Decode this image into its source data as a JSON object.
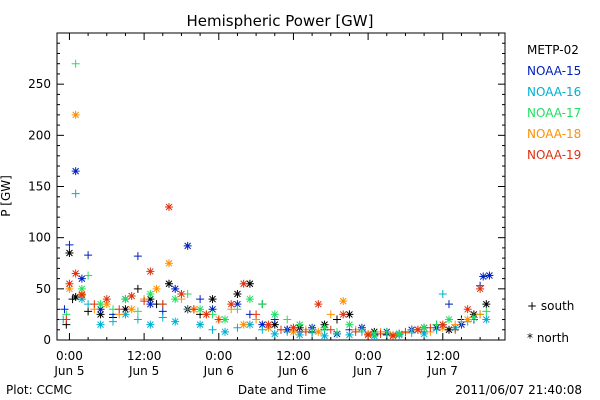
{
  "chart_data": {
    "type": "scatter",
    "title": "Hemispheric Power [GW]",
    "xlabel": "Date and Time",
    "ylabel": "P [GW]",
    "ylim": [
      0,
      300
    ],
    "yticks": [
      0,
      50,
      100,
      150,
      200,
      250
    ],
    "xlim": [
      -2,
      70
    ],
    "x_unit": "hours since 2011-06-05 00:00 UT",
    "xticks": [
      {
        "x": 0,
        "time": "0:00",
        "date": "Jun 5"
      },
      {
        "x": 12,
        "time": "12:00",
        "date": "Jun 5"
      },
      {
        "x": 24,
        "time": "0:00",
        "date": "Jun 6"
      },
      {
        "x": 36,
        "time": "12:00",
        "date": "Jun 6"
      },
      {
        "x": 48,
        "time": "0:00",
        "date": "Jun 7"
      },
      {
        "x": 60,
        "time": "12:00",
        "date": "Jun 7"
      }
    ],
    "legend_position": "right",
    "marker_legend": [
      {
        "symbol": "+",
        "label": "south"
      },
      {
        "symbol": "*",
        "label": "north"
      }
    ],
    "series": [
      {
        "name": "METP-02",
        "color": "#000000",
        "points": [
          [
            -0.5,
            15,
            "+"
          ],
          [
            1,
            42,
            "*"
          ],
          [
            3,
            28,
            "+"
          ],
          [
            5,
            25,
            "*"
          ],
          [
            7,
            22,
            "+"
          ],
          [
            9,
            30,
            "*"
          ],
          [
            11,
            50,
            "+"
          ],
          [
            13,
            40,
            "*"
          ],
          [
            14,
            35,
            "+"
          ],
          [
            16,
            55,
            "*"
          ],
          [
            18,
            45,
            "+"
          ],
          [
            19,
            30,
            "*"
          ],
          [
            21,
            25,
            "+"
          ],
          [
            23,
            40,
            "*"
          ],
          [
            25,
            20,
            "+"
          ],
          [
            27,
            45,
            "*"
          ],
          [
            29,
            55,
            "*"
          ],
          [
            31,
            35,
            "+"
          ],
          [
            33,
            15,
            "*"
          ],
          [
            35,
            10,
            "+"
          ],
          [
            37,
            12,
            "*"
          ],
          [
            39,
            8,
            "+"
          ],
          [
            41,
            15,
            "*"
          ],
          [
            43,
            20,
            "+"
          ],
          [
            45,
            25,
            "*"
          ],
          [
            47,
            10,
            "+"
          ],
          [
            49,
            8,
            "*"
          ],
          [
            51,
            5,
            "+"
          ],
          [
            53,
            6,
            "*"
          ],
          [
            55,
            10,
            "+"
          ],
          [
            57,
            12,
            "*"
          ],
          [
            59,
            15,
            "+"
          ],
          [
            61,
            10,
            "*"
          ],
          [
            63,
            20,
            "+"
          ],
          [
            65,
            25,
            "*"
          ],
          [
            67,
            35,
            "*"
          ],
          [
            0,
            85,
            "*"
          ],
          [
            0.5,
            40,
            "+"
          ]
        ]
      },
      {
        "name": "NOAA-15",
        "color": "#0020c0",
        "points": [
          [
            -0.8,
            30,
            "+"
          ],
          [
            0,
            93,
            "+"
          ],
          [
            1,
            165,
            "*"
          ],
          [
            2,
            60,
            "*"
          ],
          [
            3,
            83,
            "+"
          ],
          [
            5,
            30,
            "*"
          ],
          [
            7,
            25,
            "+"
          ],
          [
            9,
            40,
            "*"
          ],
          [
            11,
            82,
            "+"
          ],
          [
            13,
            35,
            "*"
          ],
          [
            15,
            28,
            "+"
          ],
          [
            17,
            50,
            "*"
          ],
          [
            19,
            92,
            "*"
          ],
          [
            21,
            40,
            "+"
          ],
          [
            23,
            30,
            "*"
          ],
          [
            25,
            20,
            "+"
          ],
          [
            27,
            35,
            "*"
          ],
          [
            29,
            25,
            "+"
          ],
          [
            31,
            15,
            "*"
          ],
          [
            33,
            20,
            "+"
          ],
          [
            35,
            10,
            "*"
          ],
          [
            37,
            8,
            "+"
          ],
          [
            39,
            12,
            "*"
          ],
          [
            41,
            10,
            "+"
          ],
          [
            43,
            6,
            "*"
          ],
          [
            45,
            10,
            "+"
          ],
          [
            47,
            12,
            "*"
          ],
          [
            49,
            5,
            "+"
          ],
          [
            51,
            8,
            "*"
          ],
          [
            53,
            6,
            "+"
          ],
          [
            55,
            10,
            "*"
          ],
          [
            57,
            8,
            "+"
          ],
          [
            59,
            12,
            "*"
          ],
          [
            61,
            35,
            "+"
          ],
          [
            63,
            15,
            "*"
          ],
          [
            65,
            20,
            "+"
          ],
          [
            66,
            53,
            "+"
          ],
          [
            66.5,
            62,
            "*"
          ],
          [
            67.5,
            63,
            "*"
          ]
        ]
      },
      {
        "name": "NOAA-16",
        "color": "#00b0d0",
        "points": [
          [
            -1,
            20,
            "+"
          ],
          [
            1,
            143,
            "+"
          ],
          [
            2,
            40,
            "*"
          ],
          [
            3,
            35,
            "+"
          ],
          [
            5,
            15,
            "*"
          ],
          [
            7,
            18,
            "+"
          ],
          [
            9,
            25,
            "*"
          ],
          [
            11,
            20,
            "+"
          ],
          [
            13,
            15,
            "*"
          ],
          [
            15,
            22,
            "+"
          ],
          [
            17,
            18,
            "*"
          ],
          [
            19,
            30,
            "+"
          ],
          [
            21,
            15,
            "*"
          ],
          [
            23,
            10,
            "+"
          ],
          [
            25,
            8,
            "*"
          ],
          [
            27,
            12,
            "+"
          ],
          [
            29,
            15,
            "*"
          ],
          [
            31,
            10,
            "+"
          ],
          [
            33,
            6,
            "*"
          ],
          [
            35,
            8,
            "+"
          ],
          [
            37,
            5,
            "*"
          ],
          [
            39,
            7,
            "+"
          ],
          [
            41,
            4,
            "*"
          ],
          [
            43,
            6,
            "+"
          ],
          [
            45,
            5,
            "*"
          ],
          [
            47,
            8,
            "+"
          ],
          [
            49,
            4,
            "*"
          ],
          [
            51,
            6,
            "+"
          ],
          [
            53,
            5,
            "*"
          ],
          [
            55,
            7,
            "+"
          ],
          [
            57,
            6,
            "*"
          ],
          [
            59,
            10,
            "+"
          ],
          [
            60,
            45,
            "+"
          ],
          [
            62,
            12,
            "*"
          ],
          [
            64,
            18,
            "+"
          ],
          [
            66,
            25,
            "+"
          ],
          [
            67,
            20,
            "*"
          ]
        ]
      },
      {
        "name": "NOAA-17",
        "color": "#20e060",
        "points": [
          [
            -0.5,
            25,
            "+"
          ],
          [
            1,
            270,
            "+"
          ],
          [
            2,
            50,
            "*"
          ],
          [
            3,
            63,
            "+"
          ],
          [
            5,
            35,
            "*"
          ],
          [
            7,
            30,
            "+"
          ],
          [
            9,
            40,
            "*"
          ],
          [
            11,
            28,
            "+"
          ],
          [
            13,
            45,
            "*"
          ],
          [
            15,
            35,
            "+"
          ],
          [
            17,
            40,
            "*"
          ],
          [
            19,
            45,
            "+"
          ],
          [
            21,
            30,
            "*"
          ],
          [
            23,
            25,
            "+"
          ],
          [
            25,
            20,
            "*"
          ],
          [
            27,
            30,
            "+"
          ],
          [
            29,
            40,
            "*"
          ],
          [
            31,
            35,
            "+"
          ],
          [
            33,
            25,
            "*"
          ],
          [
            35,
            20,
            "+"
          ],
          [
            37,
            15,
            "*"
          ],
          [
            39,
            10,
            "+"
          ],
          [
            41,
            12,
            "*"
          ],
          [
            43,
            8,
            "+"
          ],
          [
            45,
            15,
            "*"
          ],
          [
            47,
            10,
            "+"
          ],
          [
            49,
            6,
            "*"
          ],
          [
            51,
            8,
            "+"
          ],
          [
            53,
            6,
            "*"
          ],
          [
            55,
            10,
            "+"
          ],
          [
            57,
            12,
            "*"
          ],
          [
            59,
            15,
            "+"
          ],
          [
            61,
            20,
            "*"
          ],
          [
            63,
            18,
            "+"
          ],
          [
            65,
            22,
            "*"
          ],
          [
            67,
            28,
            "+"
          ]
        ]
      },
      {
        "name": "NOAA-18",
        "color": "#ff9000",
        "points": [
          [
            0,
            50,
            "*"
          ],
          [
            1,
            220,
            "*"
          ],
          [
            2,
            45,
            "*"
          ],
          [
            4,
            30,
            "+"
          ],
          [
            6,
            35,
            "*"
          ],
          [
            8,
            25,
            "+"
          ],
          [
            10,
            30,
            "*"
          ],
          [
            12,
            40,
            "+"
          ],
          [
            14,
            50,
            "*"
          ],
          [
            16,
            75,
            "*"
          ],
          [
            18,
            40,
            "+"
          ],
          [
            20,
            30,
            "*"
          ],
          [
            22,
            25,
            "+"
          ],
          [
            24,
            20,
            "*"
          ],
          [
            26,
            30,
            "+"
          ],
          [
            28,
            15,
            "*"
          ],
          [
            30,
            20,
            "+"
          ],
          [
            32,
            12,
            "*"
          ],
          [
            34,
            10,
            "+"
          ],
          [
            36,
            8,
            "*"
          ],
          [
            38,
            10,
            "+"
          ],
          [
            40,
            8,
            "*"
          ],
          [
            42,
            25,
            "+"
          ],
          [
            44,
            38,
            "*"
          ],
          [
            46,
            10,
            "+"
          ],
          [
            48,
            6,
            "*"
          ],
          [
            50,
            8,
            "+"
          ],
          [
            52,
            5,
            "*"
          ],
          [
            54,
            7,
            "+"
          ],
          [
            56,
            10,
            "*"
          ],
          [
            58,
            8,
            "+"
          ],
          [
            60,
            12,
            "*"
          ],
          [
            62,
            15,
            "+"
          ],
          [
            64,
            20,
            "*"
          ],
          [
            66,
            25,
            "+"
          ]
        ]
      },
      {
        "name": "NOAA-19",
        "color": "#e03010",
        "points": [
          [
            -0.5,
            20,
            "+"
          ],
          [
            0,
            55,
            "*"
          ],
          [
            1,
            65,
            "*"
          ],
          [
            2,
            44,
            "*"
          ],
          [
            4,
            35,
            "+"
          ],
          [
            6,
            40,
            "*"
          ],
          [
            8,
            30,
            "+"
          ],
          [
            10,
            43,
            "*"
          ],
          [
            12,
            38,
            "+"
          ],
          [
            13,
            67,
            "*"
          ],
          [
            15,
            35,
            "+"
          ],
          [
            16,
            130,
            "*"
          ],
          [
            18,
            45,
            "*"
          ],
          [
            20,
            30,
            "+"
          ],
          [
            22,
            25,
            "*"
          ],
          [
            24,
            20,
            "+"
          ],
          [
            26,
            35,
            "*"
          ],
          [
            28,
            55,
            "*"
          ],
          [
            30,
            25,
            "+"
          ],
          [
            32,
            15,
            "*"
          ],
          [
            34,
            10,
            "+"
          ],
          [
            36,
            12,
            "*"
          ],
          [
            38,
            8,
            "+"
          ],
          [
            40,
            35,
            "*"
          ],
          [
            42,
            10,
            "+"
          ],
          [
            44,
            25,
            "*"
          ],
          [
            46,
            8,
            "+"
          ],
          [
            48,
            5,
            "*"
          ],
          [
            50,
            6,
            "+"
          ],
          [
            52,
            4,
            "*"
          ],
          [
            54,
            8,
            "+"
          ],
          [
            56,
            10,
            "*"
          ],
          [
            58,
            12,
            "+"
          ],
          [
            60,
            15,
            "*"
          ],
          [
            62,
            10,
            "+"
          ],
          [
            64,
            30,
            "*"
          ],
          [
            66,
            50,
            "*"
          ]
        ]
      }
    ]
  },
  "footer": {
    "left": "Plot: CCMC",
    "center": "Date and Time",
    "right": "2011/06/07 21:40:08"
  }
}
